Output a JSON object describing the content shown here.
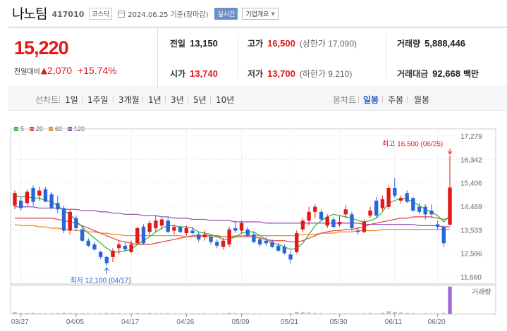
{
  "header": {
    "stock_name": "나노팀",
    "stock_code": "417010",
    "market": "코스닥",
    "date_text": "2024.06.25 기준(장마감)",
    "realtime_label": "실시간",
    "company_info_label": "기업개요"
  },
  "price": {
    "current": "15,220",
    "change_label": "전일대비",
    "change_value": "2,070",
    "change_percent": "+15.74%",
    "up_color": "#e0191a"
  },
  "stats": {
    "prev_label": "전일",
    "prev_value": "13,150",
    "high_label": "고가",
    "high_value": "16,500",
    "upper_limit": "(상한가 17,090)",
    "volume_label": "거래량",
    "volume_value": "5,888,446",
    "open_label": "시가",
    "open_value": "13,740",
    "low_label": "저가",
    "low_value": "13,700",
    "lower_limit": "(하한가 9,210)",
    "amount_label": "거래대금",
    "amount_value": "92,668",
    "amount_unit": "백만"
  },
  "tabs": {
    "line_chart_label": "선차트",
    "periods": [
      "1일",
      "1주일",
      "3개월",
      "1년",
      "3년",
      "5년",
      "10년"
    ],
    "candle_chart_label": "봉차트",
    "candle_periods": [
      "일봉",
      "주봉",
      "월봉"
    ],
    "active_candle": "일봉"
  },
  "legend": [
    {
      "name": "5",
      "color": "#3cb53c"
    },
    {
      "name": "20",
      "color": "#e24b4b"
    },
    {
      "name": "60",
      "color": "#f08a24"
    },
    {
      "name": "120",
      "color": "#9b59b6"
    }
  ],
  "annotations": {
    "high_label": "최고 16,500 (06/25)",
    "low_label": "최저 12,100 (04/17)",
    "volume_label": "거래량"
  },
  "chart_data": {
    "type": "candlestick",
    "y_ticks": [
      17279,
      16342,
      15406,
      14469,
      13533,
      12596,
      11660
    ],
    "ylim": [
      11660,
      17279
    ],
    "x_tick_labels": [
      "03/27",
      "04/05",
      "04/17",
      "04/26",
      "05/09",
      "05/21",
      "05/30",
      "06/11",
      "06/20"
    ],
    "up_color": "#e0191a",
    "down_color": "#2b66d9",
    "candles": [
      {
        "o": 14500,
        "h": 15100,
        "l": 14350,
        "c": 15000
      },
      {
        "o": 14700,
        "h": 14850,
        "l": 14300,
        "c": 14400
      },
      {
        "o": 14600,
        "h": 15150,
        "l": 14500,
        "c": 15050
      },
      {
        "o": 15200,
        "h": 15300,
        "l": 14500,
        "c": 14650
      },
      {
        "o": 14900,
        "h": 15250,
        "l": 14700,
        "c": 15100
      },
      {
        "o": 15150,
        "h": 15250,
        "l": 14700,
        "c": 14650
      },
      {
        "o": 14950,
        "h": 15050,
        "l": 14350,
        "c": 14400
      },
      {
        "o": 14600,
        "h": 14900,
        "l": 14200,
        "c": 14350
      },
      {
        "o": 14400,
        "h": 14500,
        "l": 13400,
        "c": 13500
      },
      {
        "o": 13500,
        "h": 14350,
        "l": 13350,
        "c": 14250
      },
      {
        "o": 14000,
        "h": 14100,
        "l": 13500,
        "c": 13600
      },
      {
        "o": 13550,
        "h": 13700,
        "l": 13050,
        "c": 13100
      },
      {
        "o": 13100,
        "h": 13200,
        "l": 12850,
        "c": 12900
      },
      {
        "o": 12950,
        "h": 13050,
        "l": 12700,
        "c": 12750
      },
      {
        "o": 12650,
        "h": 12700,
        "l": 12350,
        "c": 12450
      },
      {
        "o": 12450,
        "h": 12500,
        "l": 12100,
        "c": 12200
      },
      {
        "o": 12450,
        "h": 12800,
        "l": 12250,
        "c": 12700
      },
      {
        "o": 12800,
        "h": 13050,
        "l": 12550,
        "c": 12950
      },
      {
        "o": 12900,
        "h": 13050,
        "l": 12650,
        "c": 12750
      },
      {
        "o": 12650,
        "h": 13100,
        "l": 12600,
        "c": 12950
      },
      {
        "o": 13000,
        "h": 13650,
        "l": 12950,
        "c": 13600
      },
      {
        "o": 13650,
        "h": 13750,
        "l": 12950,
        "c": 13000
      },
      {
        "o": 13450,
        "h": 13900,
        "l": 13300,
        "c": 13800
      },
      {
        "o": 13600,
        "h": 14100,
        "l": 13450,
        "c": 13900
      },
      {
        "o": 13700,
        "h": 14000,
        "l": 13550,
        "c": 13950
      },
      {
        "o": 13900,
        "h": 14000,
        "l": 13400,
        "c": 13450
      },
      {
        "o": 13500,
        "h": 13750,
        "l": 13350,
        "c": 13650
      },
      {
        "o": 13650,
        "h": 13700,
        "l": 13400,
        "c": 13450
      },
      {
        "o": 13400,
        "h": 13700,
        "l": 13300,
        "c": 13600
      },
      {
        "o": 13500,
        "h": 13650,
        "l": 13350,
        "c": 13400
      },
      {
        "o": 13350,
        "h": 13450,
        "l": 13050,
        "c": 13150
      },
      {
        "o": 13250,
        "h": 13500,
        "l": 13100,
        "c": 13350
      },
      {
        "o": 13250,
        "h": 13300,
        "l": 12950,
        "c": 13050
      },
      {
        "o": 13050,
        "h": 13150,
        "l": 12800,
        "c": 12900
      },
      {
        "o": 12850,
        "h": 13200,
        "l": 12750,
        "c": 13100
      },
      {
        "o": 12950,
        "h": 13650,
        "l": 12850,
        "c": 13550
      },
      {
        "o": 13600,
        "h": 13900,
        "l": 13400,
        "c": 13500
      },
      {
        "o": 13500,
        "h": 13900,
        "l": 13400,
        "c": 13800
      },
      {
        "o": 13550,
        "h": 13650,
        "l": 13250,
        "c": 13300
      },
      {
        "o": 13350,
        "h": 13450,
        "l": 13000,
        "c": 13050
      },
      {
        "o": 13150,
        "h": 13250,
        "l": 12850,
        "c": 12950
      },
      {
        "o": 13100,
        "h": 13250,
        "l": 12900,
        "c": 13000
      },
      {
        "o": 13050,
        "h": 13150,
        "l": 12800,
        "c": 12850
      },
      {
        "o": 12900,
        "h": 13000,
        "l": 12650,
        "c": 12700
      },
      {
        "o": 12850,
        "h": 12950,
        "l": 12550,
        "c": 12600
      },
      {
        "o": 12550,
        "h": 12700,
        "l": 12200,
        "c": 12350
      },
      {
        "o": 12650,
        "h": 13500,
        "l": 12600,
        "c": 13400
      },
      {
        "o": 13550,
        "h": 14000,
        "l": 13450,
        "c": 13900
      },
      {
        "o": 13900,
        "h": 14450,
        "l": 13700,
        "c": 14250
      },
      {
        "o": 14250,
        "h": 14550,
        "l": 14000,
        "c": 14450
      },
      {
        "o": 14250,
        "h": 14350,
        "l": 13900,
        "c": 13950
      },
      {
        "o": 13700,
        "h": 14150,
        "l": 13600,
        "c": 14050
      },
      {
        "o": 13950,
        "h": 14050,
        "l": 13600,
        "c": 13650
      },
      {
        "o": 13750,
        "h": 14100,
        "l": 13650,
        "c": 13850
      },
      {
        "o": 14150,
        "h": 14500,
        "l": 14000,
        "c": 14350
      },
      {
        "o": 14150,
        "h": 14250,
        "l": 13500,
        "c": 13600
      },
      {
        "o": 13500,
        "h": 13650,
        "l": 13350,
        "c": 13450
      },
      {
        "o": 13450,
        "h": 13950,
        "l": 13400,
        "c": 13850
      },
      {
        "o": 14100,
        "h": 14450,
        "l": 14000,
        "c": 14300
      },
      {
        "o": 14700,
        "h": 14850,
        "l": 14000,
        "c": 14100
      },
      {
        "o": 14400,
        "h": 14900,
        "l": 14300,
        "c": 14750
      },
      {
        "o": 14450,
        "h": 15300,
        "l": 14350,
        "c": 15200
      },
      {
        "o": 15200,
        "h": 15600,
        "l": 14800,
        "c": 14900
      },
      {
        "o": 14700,
        "h": 14900,
        "l": 14600,
        "c": 14800
      },
      {
        "o": 15000,
        "h": 15100,
        "l": 14600,
        "c": 14650
      },
      {
        "o": 14800,
        "h": 14850,
        "l": 14250,
        "c": 14300
      },
      {
        "o": 14450,
        "h": 14600,
        "l": 14150,
        "c": 14250
      },
      {
        "o": 14450,
        "h": 14550,
        "l": 13950,
        "c": 14150
      },
      {
        "o": 14300,
        "h": 14550,
        "l": 14000,
        "c": 14150
      },
      {
        "o": 13750,
        "h": 13900,
        "l": 13550,
        "c": 13650
      },
      {
        "o": 13650,
        "h": 13700,
        "l": 12850,
        "c": 13000
      },
      {
        "o": 13740,
        "h": 16500,
        "l": 13700,
        "c": 15220
      }
    ],
    "ma5": [
      14900,
      14850,
      14850,
      14800,
      14800,
      14700,
      14650,
      14500,
      14300,
      14150,
      13900,
      13650,
      13400,
      13200,
      13000,
      12800,
      12650,
      12650,
      12700,
      12750,
      12950,
      13100,
      13250,
      13450,
      13600,
      13700,
      13700,
      13650,
      13650,
      13600,
      13450,
      13400,
      13350,
      13250,
      13150,
      13150,
      13250,
      13400,
      13450,
      13450,
      13300,
      13150,
      13000,
      12950,
      12850,
      12750,
      12800,
      13000,
      13350,
      13700,
      13900,
      14050,
      14150,
      14100,
      14050,
      14000,
      13900,
      13850,
      13900,
      14000,
      14250,
      14600,
      14700,
      14800,
      14750,
      14650,
      14500,
      14350,
      14250,
      14100,
      13850,
      14100
    ],
    "ma20": [
      14000,
      14000,
      14000,
      14000,
      14000,
      14000,
      14000,
      13950,
      13900,
      13850,
      13800,
      13700,
      13600,
      13500,
      13400,
      13300,
      13200,
      13100,
      13050,
      13000,
      12950,
      12950,
      12950,
      13000,
      13050,
      13100,
      13150,
      13200,
      13250,
      13300,
      13300,
      13300,
      13300,
      13300,
      13250,
      13250,
      13250,
      13250,
      13250,
      13250,
      13200,
      13150,
      13100,
      13100,
      13100,
      13050,
      13050,
      13100,
      13200,
      13300,
      13400,
      13450,
      13500,
      13500,
      13550,
      13550,
      13600,
      13650,
      13750,
      13800,
      13850,
      13900,
      13950,
      14000,
      14000,
      14050,
      14050,
      14050,
      14050,
      14000,
      13950,
      14000
    ],
    "ma60": [
      13750,
      13700,
      13700,
      13700,
      13650,
      13650,
      13600,
      13600,
      13550,
      13550,
      13500,
      13500,
      13450,
      13450,
      13400,
      13400,
      13350,
      13350,
      13300,
      13300,
      13300,
      13300,
      13300,
      13300,
      13300,
      13300,
      13300,
      13300,
      13250,
      13250,
      13250,
      13250,
      13250,
      13250,
      13250,
      13250,
      13300,
      13300,
      13300,
      13300,
      13300,
      13300,
      13300,
      13300,
      13300,
      13300,
      13300,
      13350,
      13350,
      13350,
      13400,
      13400,
      13400,
      13450,
      13450,
      13450,
      13500,
      13500,
      13500,
      13500,
      13550,
      13550,
      13550,
      13550,
      13550,
      13550,
      13550,
      13550,
      13550,
      13550,
      13550,
      13550
    ],
    "ma120": [
      14450,
      14450,
      14450,
      14450,
      14400,
      14400,
      14400,
      14400,
      14350,
      14350,
      14350,
      14300,
      14300,
      14300,
      14250,
      14250,
      14200,
      14200,
      14150,
      14150,
      14150,
      14100,
      14100,
      14100,
      14050,
      14050,
      14000,
      14000,
      14000,
      13950,
      13950,
      13950,
      13900,
      13900,
      13900,
      13900,
      13850,
      13850,
      13850,
      13850,
      13850,
      13800,
      13800,
      13800,
      13800,
      13800,
      13800,
      13800,
      13800,
      13800,
      13800,
      13800,
      13800,
      13800,
      13800,
      13800,
      13800,
      13750,
      13750,
      13750,
      13750,
      13750,
      13750,
      13750,
      13750,
      13750,
      13700,
      13700,
      13700,
      13700,
      13650,
      13650
    ],
    "volume_rel": [
      0.08,
      0.04,
      0.04,
      0.05,
      0.03,
      0.03,
      0.03,
      0.04,
      0.05,
      0.04,
      0.03,
      0.03,
      0.03,
      0.02,
      0.03,
      0.04,
      0.03,
      0.03,
      0.02,
      0.03,
      0.04,
      0.03,
      0.04,
      0.03,
      0.03,
      0.03,
      0.02,
      0.02,
      0.02,
      0.02,
      0.02,
      0.03,
      0.02,
      0.02,
      0.03,
      0.05,
      0.03,
      0.03,
      0.02,
      0.02,
      0.02,
      0.02,
      0.02,
      0.02,
      0.02,
      0.03,
      0.08,
      0.07,
      0.06,
      0.04,
      0.03,
      0.02,
      0.02,
      0.02,
      0.03,
      0.03,
      0.02,
      0.03,
      0.04,
      0.02,
      0.05,
      0.1,
      0.08,
      0.06,
      0.04,
      0.03,
      0.02,
      0.03,
      0.02,
      0.02,
      0.04,
      1.0
    ]
  }
}
